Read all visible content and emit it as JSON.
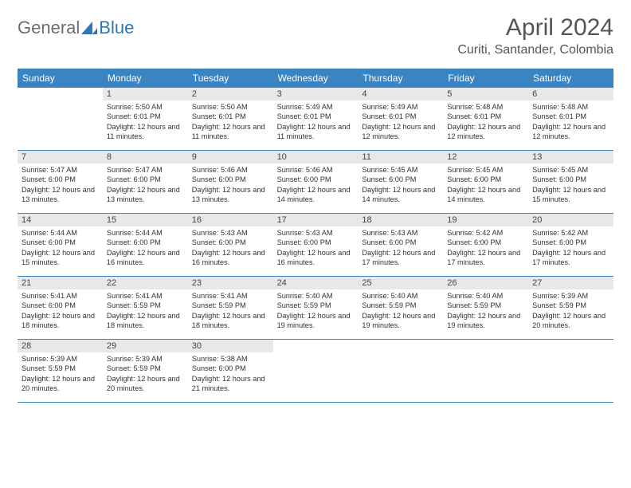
{
  "brand": {
    "part1": "General",
    "part2": "Blue"
  },
  "title": "April 2024",
  "location": "Curiti, Santander, Colombia",
  "colors": {
    "header_bg": "#3b84c4",
    "header_text": "#ffffff",
    "daynum_bg": "#e8e8e8",
    "week_border": "#3b84c4",
    "logo_gray": "#6e6e6e",
    "logo_blue": "#2f76b9",
    "title_color": "#555555"
  },
  "day_headers": [
    "Sunday",
    "Monday",
    "Tuesday",
    "Wednesday",
    "Thursday",
    "Friday",
    "Saturday"
  ],
  "weeks": [
    [
      null,
      {
        "n": "1",
        "sr": "5:50 AM",
        "ss": "6:01 PM",
        "dl": "12 hours and 11 minutes."
      },
      {
        "n": "2",
        "sr": "5:50 AM",
        "ss": "6:01 PM",
        "dl": "12 hours and 11 minutes."
      },
      {
        "n": "3",
        "sr": "5:49 AM",
        "ss": "6:01 PM",
        "dl": "12 hours and 11 minutes."
      },
      {
        "n": "4",
        "sr": "5:49 AM",
        "ss": "6:01 PM",
        "dl": "12 hours and 12 minutes."
      },
      {
        "n": "5",
        "sr": "5:48 AM",
        "ss": "6:01 PM",
        "dl": "12 hours and 12 minutes."
      },
      {
        "n": "6",
        "sr": "5:48 AM",
        "ss": "6:01 PM",
        "dl": "12 hours and 12 minutes."
      }
    ],
    [
      {
        "n": "7",
        "sr": "5:47 AM",
        "ss": "6:00 PM",
        "dl": "12 hours and 13 minutes."
      },
      {
        "n": "8",
        "sr": "5:47 AM",
        "ss": "6:00 PM",
        "dl": "12 hours and 13 minutes."
      },
      {
        "n": "9",
        "sr": "5:46 AM",
        "ss": "6:00 PM",
        "dl": "12 hours and 13 minutes."
      },
      {
        "n": "10",
        "sr": "5:46 AM",
        "ss": "6:00 PM",
        "dl": "12 hours and 14 minutes."
      },
      {
        "n": "11",
        "sr": "5:45 AM",
        "ss": "6:00 PM",
        "dl": "12 hours and 14 minutes."
      },
      {
        "n": "12",
        "sr": "5:45 AM",
        "ss": "6:00 PM",
        "dl": "12 hours and 14 minutes."
      },
      {
        "n": "13",
        "sr": "5:45 AM",
        "ss": "6:00 PM",
        "dl": "12 hours and 15 minutes."
      }
    ],
    [
      {
        "n": "14",
        "sr": "5:44 AM",
        "ss": "6:00 PM",
        "dl": "12 hours and 15 minutes."
      },
      {
        "n": "15",
        "sr": "5:44 AM",
        "ss": "6:00 PM",
        "dl": "12 hours and 16 minutes."
      },
      {
        "n": "16",
        "sr": "5:43 AM",
        "ss": "6:00 PM",
        "dl": "12 hours and 16 minutes."
      },
      {
        "n": "17",
        "sr": "5:43 AM",
        "ss": "6:00 PM",
        "dl": "12 hours and 16 minutes."
      },
      {
        "n": "18",
        "sr": "5:43 AM",
        "ss": "6:00 PM",
        "dl": "12 hours and 17 minutes."
      },
      {
        "n": "19",
        "sr": "5:42 AM",
        "ss": "6:00 PM",
        "dl": "12 hours and 17 minutes."
      },
      {
        "n": "20",
        "sr": "5:42 AM",
        "ss": "6:00 PM",
        "dl": "12 hours and 17 minutes."
      }
    ],
    [
      {
        "n": "21",
        "sr": "5:41 AM",
        "ss": "6:00 PM",
        "dl": "12 hours and 18 minutes."
      },
      {
        "n": "22",
        "sr": "5:41 AM",
        "ss": "5:59 PM",
        "dl": "12 hours and 18 minutes."
      },
      {
        "n": "23",
        "sr": "5:41 AM",
        "ss": "5:59 PM",
        "dl": "12 hours and 18 minutes."
      },
      {
        "n": "24",
        "sr": "5:40 AM",
        "ss": "5:59 PM",
        "dl": "12 hours and 19 minutes."
      },
      {
        "n": "25",
        "sr": "5:40 AM",
        "ss": "5:59 PM",
        "dl": "12 hours and 19 minutes."
      },
      {
        "n": "26",
        "sr": "5:40 AM",
        "ss": "5:59 PM",
        "dl": "12 hours and 19 minutes."
      },
      {
        "n": "27",
        "sr": "5:39 AM",
        "ss": "5:59 PM",
        "dl": "12 hours and 20 minutes."
      }
    ],
    [
      {
        "n": "28",
        "sr": "5:39 AM",
        "ss": "5:59 PM",
        "dl": "12 hours and 20 minutes."
      },
      {
        "n": "29",
        "sr": "5:39 AM",
        "ss": "5:59 PM",
        "dl": "12 hours and 20 minutes."
      },
      {
        "n": "30",
        "sr": "5:38 AM",
        "ss": "6:00 PM",
        "dl": "12 hours and 21 minutes."
      },
      null,
      null,
      null,
      null
    ]
  ],
  "labels": {
    "sunrise": "Sunrise:",
    "sunset": "Sunset:",
    "daylight": "Daylight:"
  }
}
